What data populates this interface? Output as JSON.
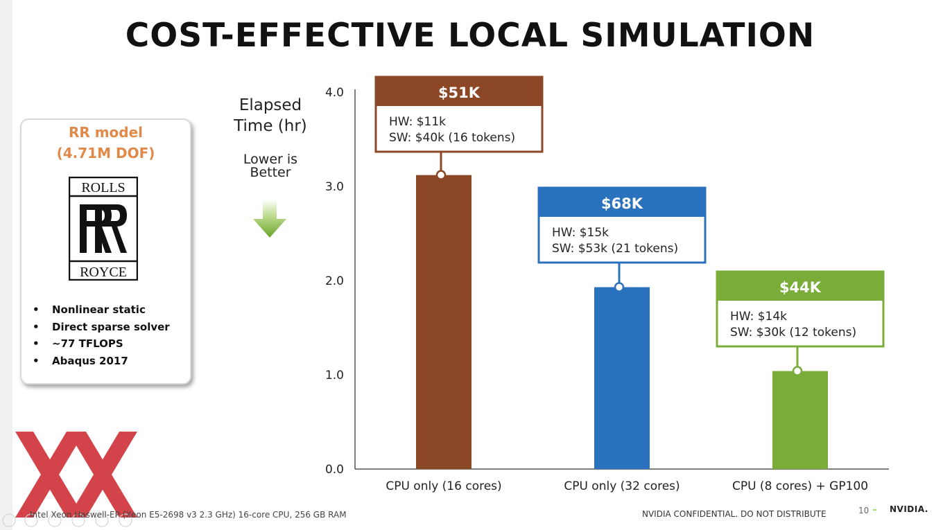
{
  "title": "COST-EFFECTIVE LOCAL SIMULATION",
  "model": {
    "name_line1": "RR model",
    "name_line2": "(4.71M DOF)",
    "logo_text_top": "ROLLS",
    "logo_text_bottom": "ROYCE",
    "bullets": [
      "Nonlinear static",
      "Direct sparse solver",
      "~77 TFLOPS",
      "Abaqus 2017"
    ]
  },
  "chart_data": {
    "type": "bar",
    "ylabel": "Elapsed Time (hr)",
    "ylim": [
      0,
      4.0
    ],
    "yticks": [
      "0.0",
      "1.0",
      "2.0",
      "3.0",
      "4.0"
    ],
    "annotation": "Lower is Better",
    "categories": [
      "CPU only (16 cores)",
      "CPU only (32 cores)",
      "CPU (8 cores) + GP100"
    ],
    "values": [
      3.12,
      1.93,
      1.04
    ],
    "colors": [
      "#8b4726",
      "#2b72be",
      "#7aac3a"
    ],
    "callouts": [
      {
        "total": "$51K",
        "hw": "HW: $11k",
        "sw": "SW: $40k (16 tokens)"
      },
      {
        "total": "$68K",
        "hw": "HW: $15k",
        "sw": "SW: $53k (21 tokens)"
      },
      {
        "total": "$44K",
        "hw": "HW: $14k",
        "sw": "SW: $30k (12 tokens)"
      }
    ],
    "grid": false
  },
  "footer": {
    "note": "Intel Xeon Haswell-EP (Xeon E5-2698 v3 2.3 GHz) 16-core CPU, 256 GB RAM",
    "confidential": "NVIDIA CONFIDENTIAL. DO NOT DISTRIBUTE",
    "page": "10",
    "brand": "NVIDIA."
  }
}
